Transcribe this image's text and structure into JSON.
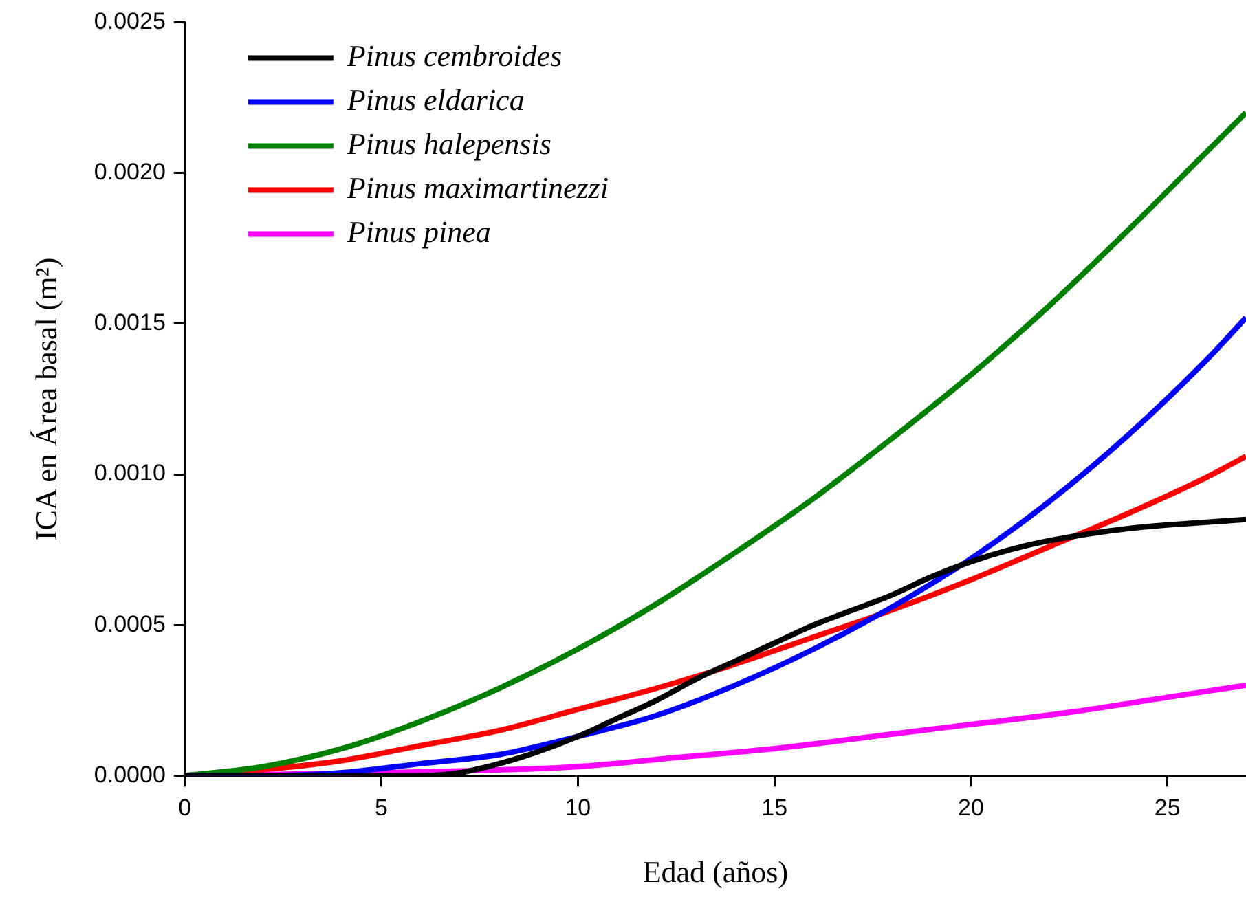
{
  "chart_data": {
    "type": "line",
    "xlabel": "Edad (años)",
    "ylabel": "ICA en Área basal (m²)",
    "xlim": [
      0,
      27
    ],
    "xticks": [
      0,
      5,
      10,
      15,
      20,
      25
    ],
    "ylim": [
      0,
      0.0025
    ],
    "yticks": [
      {
        "value": 0,
        "label": "0.0000"
      },
      {
        "value": 0.0005,
        "label": "0.0005"
      },
      {
        "value": 0.001,
        "label": "0.0010"
      },
      {
        "value": 0.0015,
        "label": "0.0015"
      },
      {
        "value": 0.002,
        "label": "0.0020"
      },
      {
        "value": 0.0025,
        "label": "0.0025"
      }
    ],
    "grid": false,
    "legend": "top left",
    "marker": "none",
    "line_style": "solid",
    "series": [
      {
        "name": "Pinus cembroides",
        "color": "#000000",
        "x": [
          0,
          2,
          4,
          6,
          7,
          8,
          9,
          10,
          11,
          12,
          13,
          14,
          15,
          16,
          17,
          18,
          19,
          20,
          21,
          22,
          24,
          27
        ],
        "values": [
          0,
          0,
          0,
          0,
          1e-05,
          4e-05,
          8e-05,
          0.00013,
          0.00019,
          0.00025,
          0.00032,
          0.00038,
          0.00044,
          0.0005,
          0.00055,
          0.0006,
          0.00066,
          0.00071,
          0.00075,
          0.00078,
          0.00082,
          0.00085
        ]
      },
      {
        "name": "Pinus eldarica",
        "color": "#0000ff",
        "x": [
          0,
          2,
          4,
          6,
          8,
          10,
          12,
          14,
          16,
          18,
          20,
          22,
          24,
          26,
          27
        ],
        "values": [
          0,
          0,
          1e-05,
          4e-05,
          7e-05,
          0.00013,
          0.0002,
          0.0003,
          0.00042,
          0.00056,
          0.00072,
          0.00091,
          0.00113,
          0.00138,
          0.00152
        ]
      },
      {
        "name": "Pinus halepensis",
        "color": "#008000",
        "x": [
          0,
          2,
          4,
          6,
          8,
          10,
          12,
          14,
          16,
          18,
          20,
          22,
          24,
          26,
          27
        ],
        "values": [
          0,
          3e-05,
          9e-05,
          0.00018,
          0.00029,
          0.00042,
          0.00057,
          0.00074,
          0.00092,
          0.00112,
          0.00133,
          0.00156,
          0.00181,
          0.00207,
          0.0022
        ]
      },
      {
        "name": "Pinus maximartinezzi",
        "color": "#ff0000",
        "x": [
          0,
          2,
          4,
          6,
          8,
          10,
          12,
          14,
          16,
          18,
          20,
          22,
          24,
          26,
          27
        ],
        "values": [
          0,
          2e-05,
          5e-05,
          0.0001,
          0.00015,
          0.00022,
          0.00029,
          0.00037,
          0.00046,
          0.00055,
          0.00065,
          0.00076,
          0.00087,
          0.00099,
          0.00106
        ]
      },
      {
        "name": "Pinus pinea",
        "color": "#ff00ff",
        "x": [
          0,
          5,
          10,
          12.5,
          15,
          17.5,
          20,
          22.5,
          25,
          27
        ],
        "values": [
          0,
          1e-05,
          3e-05,
          6e-05,
          9e-05,
          0.00013,
          0.00017,
          0.00021,
          0.00026,
          0.0003
        ]
      }
    ]
  }
}
